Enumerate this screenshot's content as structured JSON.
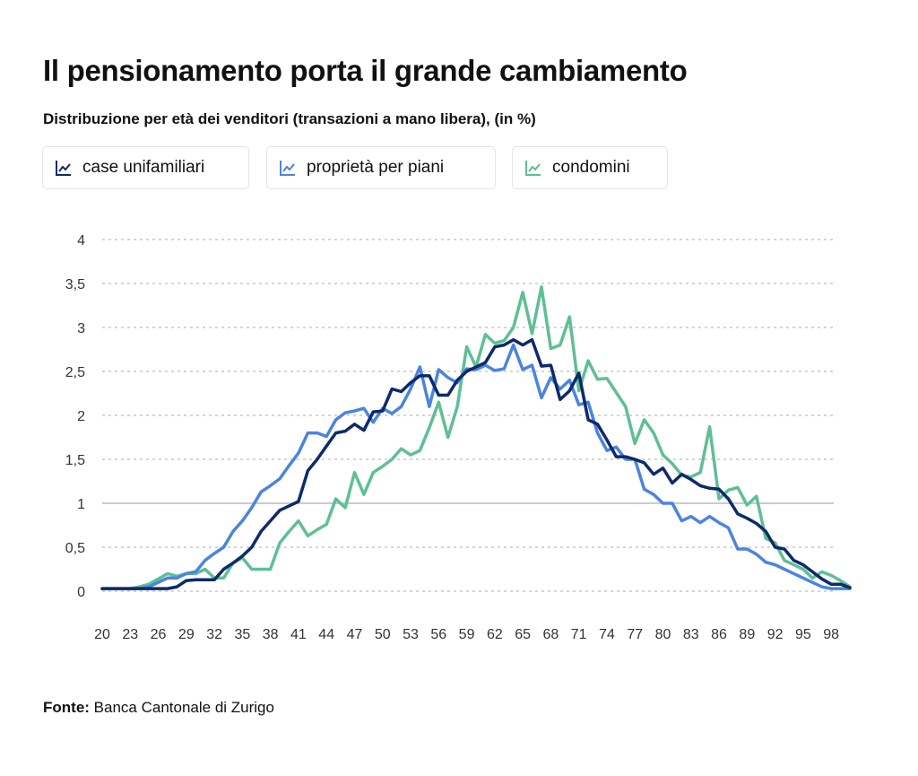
{
  "header": {
    "title": "Il pensionamento porta il grande cambiamento",
    "subtitle": "Distribuzione per età dei venditori (transazioni a mano libera), (in %)"
  },
  "footer": {
    "source_label": "Fonte:",
    "source_text": " Banca Cantonale di Zurigo"
  },
  "colors": {
    "case_unifamiliari": "#0d2a6b",
    "proprieta_per_piani": "#4b84e0",
    "condomini": "#5fbf94",
    "grid": "#b9bcc2",
    "axis_text": "#333333"
  },
  "chart_data": {
    "type": "line",
    "title": "Il pensionamento porta il grande cambiamento",
    "subtitle": "Distribuzione per età dei venditori (transazioni a mano libera), (in %)",
    "xlabel": "",
    "ylabel": "",
    "x_range": [
      20,
      100
    ],
    "ylim": [
      0,
      4
    ],
    "y_ticks": [
      0,
      0.5,
      1,
      1.5,
      2,
      2.5,
      3,
      3.5,
      4
    ],
    "y_tick_labels": [
      "0",
      "0,5",
      "1",
      "1,5",
      "2",
      "2,5",
      "3",
      "3,5",
      "4"
    ],
    "x_ticks": [
      20,
      23,
      26,
      29,
      32,
      35,
      38,
      41,
      44,
      47,
      50,
      53,
      56,
      59,
      62,
      65,
      68,
      71,
      74,
      77,
      80,
      83,
      86,
      89,
      92,
      95,
      98
    ],
    "x_tick_labels": [
      "20",
      "23",
      "26",
      "29",
      "32",
      "35",
      "38",
      "41",
      "44",
      "47",
      "50",
      "53",
      "56",
      "59",
      "62",
      "65",
      "68",
      "71",
      "74",
      "77",
      "80",
      "83",
      "86",
      "89",
      "92",
      "95",
      "98"
    ],
    "grid": true,
    "legend_position": "top",
    "x": [
      20,
      21,
      22,
      23,
      24,
      25,
      26,
      27,
      28,
      29,
      30,
      31,
      32,
      33,
      34,
      35,
      36,
      37,
      38,
      39,
      40,
      41,
      42,
      43,
      44,
      45,
      46,
      47,
      48,
      49,
      50,
      51,
      52,
      53,
      54,
      55,
      56,
      57,
      58,
      59,
      60,
      61,
      62,
      63,
      64,
      65,
      66,
      67,
      68,
      69,
      70,
      71,
      72,
      73,
      74,
      75,
      76,
      77,
      78,
      79,
      80,
      81,
      82,
      83,
      84,
      85,
      86,
      87,
      88,
      89,
      90,
      91,
      92,
      93,
      94,
      95,
      96,
      97,
      98,
      99,
      100
    ],
    "series": [
      {
        "name": "case unifamiliari",
        "key": "case_unifamiliari",
        "values": [
          0.03,
          0.03,
          0.03,
          0.03,
          0.03,
          0.03,
          0.03,
          0.03,
          0.05,
          0.12,
          0.13,
          0.13,
          0.13,
          0.25,
          0.32,
          0.4,
          0.5,
          0.68,
          0.8,
          0.92,
          0.97,
          1.02,
          1.37,
          1.5,
          1.65,
          1.8,
          1.82,
          1.9,
          1.83,
          2.04,
          2.05,
          2.3,
          2.27,
          2.37,
          2.45,
          2.45,
          2.23,
          2.23,
          2.4,
          2.5,
          2.55,
          2.6,
          2.78,
          2.8,
          2.86,
          2.8,
          2.86,
          2.56,
          2.57,
          2.18,
          2.28,
          2.48,
          1.95,
          1.9,
          1.72,
          1.53,
          1.53,
          1.5,
          1.46,
          1.33,
          1.4,
          1.23,
          1.33,
          1.27,
          1.2,
          1.17,
          1.16,
          1.05,
          0.88,
          0.83,
          0.77,
          0.68,
          0.5,
          0.48,
          0.35,
          0.3,
          0.22,
          0.14,
          0.08,
          0.08,
          0.04
        ]
      },
      {
        "name": "proprietà per piani",
        "key": "proprieta_per_piani",
        "values": [
          0.03,
          0.03,
          0.03,
          0.03,
          0.03,
          0.05,
          0.1,
          0.15,
          0.15,
          0.2,
          0.22,
          0.35,
          0.43,
          0.5,
          0.68,
          0.8,
          0.95,
          1.13,
          1.2,
          1.28,
          1.43,
          1.57,
          1.8,
          1.8,
          1.76,
          1.95,
          2.03,
          2.05,
          2.08,
          1.92,
          2.08,
          2.02,
          2.1,
          2.3,
          2.55,
          2.1,
          2.52,
          2.43,
          2.37,
          2.53,
          2.52,
          2.57,
          2.51,
          2.53,
          2.8,
          2.52,
          2.57,
          2.2,
          2.43,
          2.3,
          2.4,
          2.12,
          2.15,
          1.8,
          1.6,
          1.64,
          1.5,
          1.5,
          1.16,
          1.1,
          1.0,
          1.0,
          0.8,
          0.85,
          0.78,
          0.85,
          0.78,
          0.72,
          0.48,
          0.48,
          0.42,
          0.33,
          0.3,
          0.25,
          0.2,
          0.15,
          0.1,
          0.05,
          0.03,
          0.03,
          0.03
        ]
      },
      {
        "name": "condomini",
        "key": "condomini",
        "values": [
          0.03,
          0.03,
          0.03,
          0.03,
          0.05,
          0.08,
          0.14,
          0.2,
          0.17,
          0.2,
          0.2,
          0.25,
          0.15,
          0.15,
          0.32,
          0.38,
          0.25,
          0.25,
          0.25,
          0.55,
          0.68,
          0.8,
          0.63,
          0.7,
          0.76,
          1.05,
          0.95,
          1.35,
          1.1,
          1.35,
          1.42,
          1.5,
          1.62,
          1.55,
          1.6,
          1.86,
          2.15,
          1.75,
          2.1,
          2.78,
          2.55,
          2.92,
          2.82,
          2.85,
          3.0,
          3.4,
          2.93,
          3.46,
          2.76,
          2.8,
          3.12,
          2.28,
          2.62,
          2.41,
          2.42,
          2.26,
          2.1,
          1.68,
          1.95,
          1.8,
          1.55,
          1.45,
          1.32,
          1.3,
          1.35,
          1.87,
          1.05,
          1.15,
          1.18,
          0.98,
          1.08,
          0.6,
          0.55,
          0.35,
          0.3,
          0.25,
          0.15,
          0.22,
          0.18,
          0.12,
          0.05
        ]
      }
    ]
  }
}
